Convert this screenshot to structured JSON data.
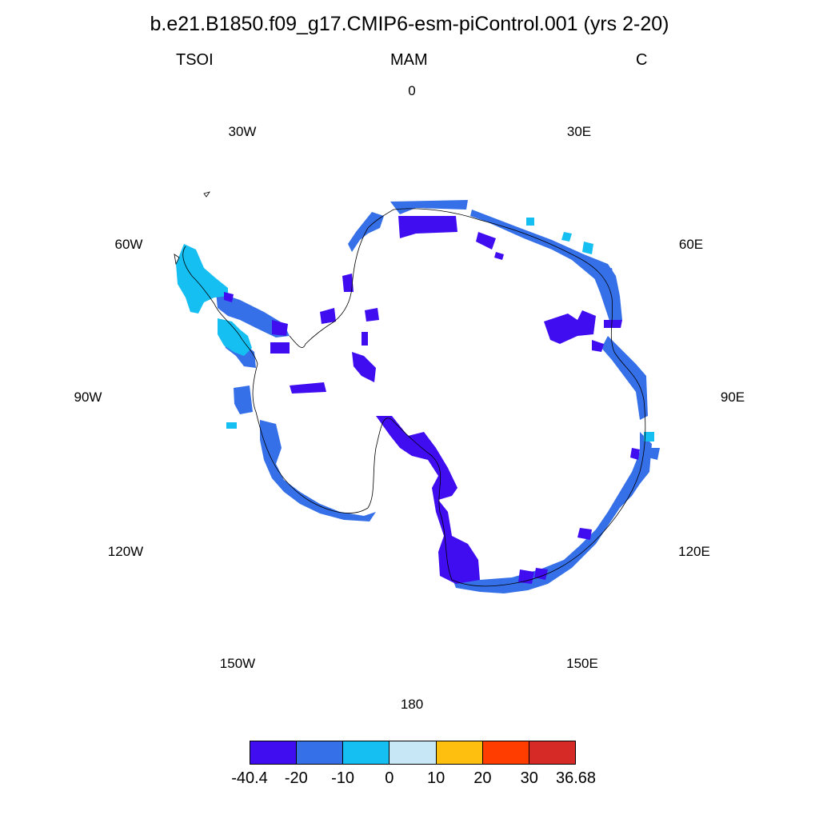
{
  "title": "b.e21.B1850.f09_g17.CMIP6-esm-piControl.001 (yrs 2-20)",
  "subtitle": {
    "left": "TSOI",
    "center": "MAM",
    "right": "C"
  },
  "longitude_labels": {
    "lon_0": "0",
    "lon_30e": "30E",
    "lon_60e": "60E",
    "lon_90e": "90E",
    "lon_120e": "120E",
    "lon_150e": "150E",
    "lon_180": "180",
    "lon_150w": "150W",
    "lon_120w": "120W",
    "lon_90w": "90W",
    "lon_60w": "60W",
    "lon_30w": "30W"
  },
  "map": {
    "projection": "south-polar-stereographic",
    "region": "Antarctica",
    "coastline_color": "#000000"
  },
  "colorbar": {
    "colors": [
      "#3f0df0",
      "#3670e8",
      "#16bff2",
      "#c7e7f7",
      "#ffbf0f",
      "#ff3d00",
      "#d62a27"
    ],
    "labels": [
      "-40.4",
      "-20",
      "-10",
      "0",
      "10",
      "20",
      "30",
      "36.68"
    ]
  },
  "legend_colors": {
    "lt_minus20": "#3f0df0",
    "minus20_to_minus10": "#3670e8",
    "minus10_to_0": "#16bff2"
  }
}
